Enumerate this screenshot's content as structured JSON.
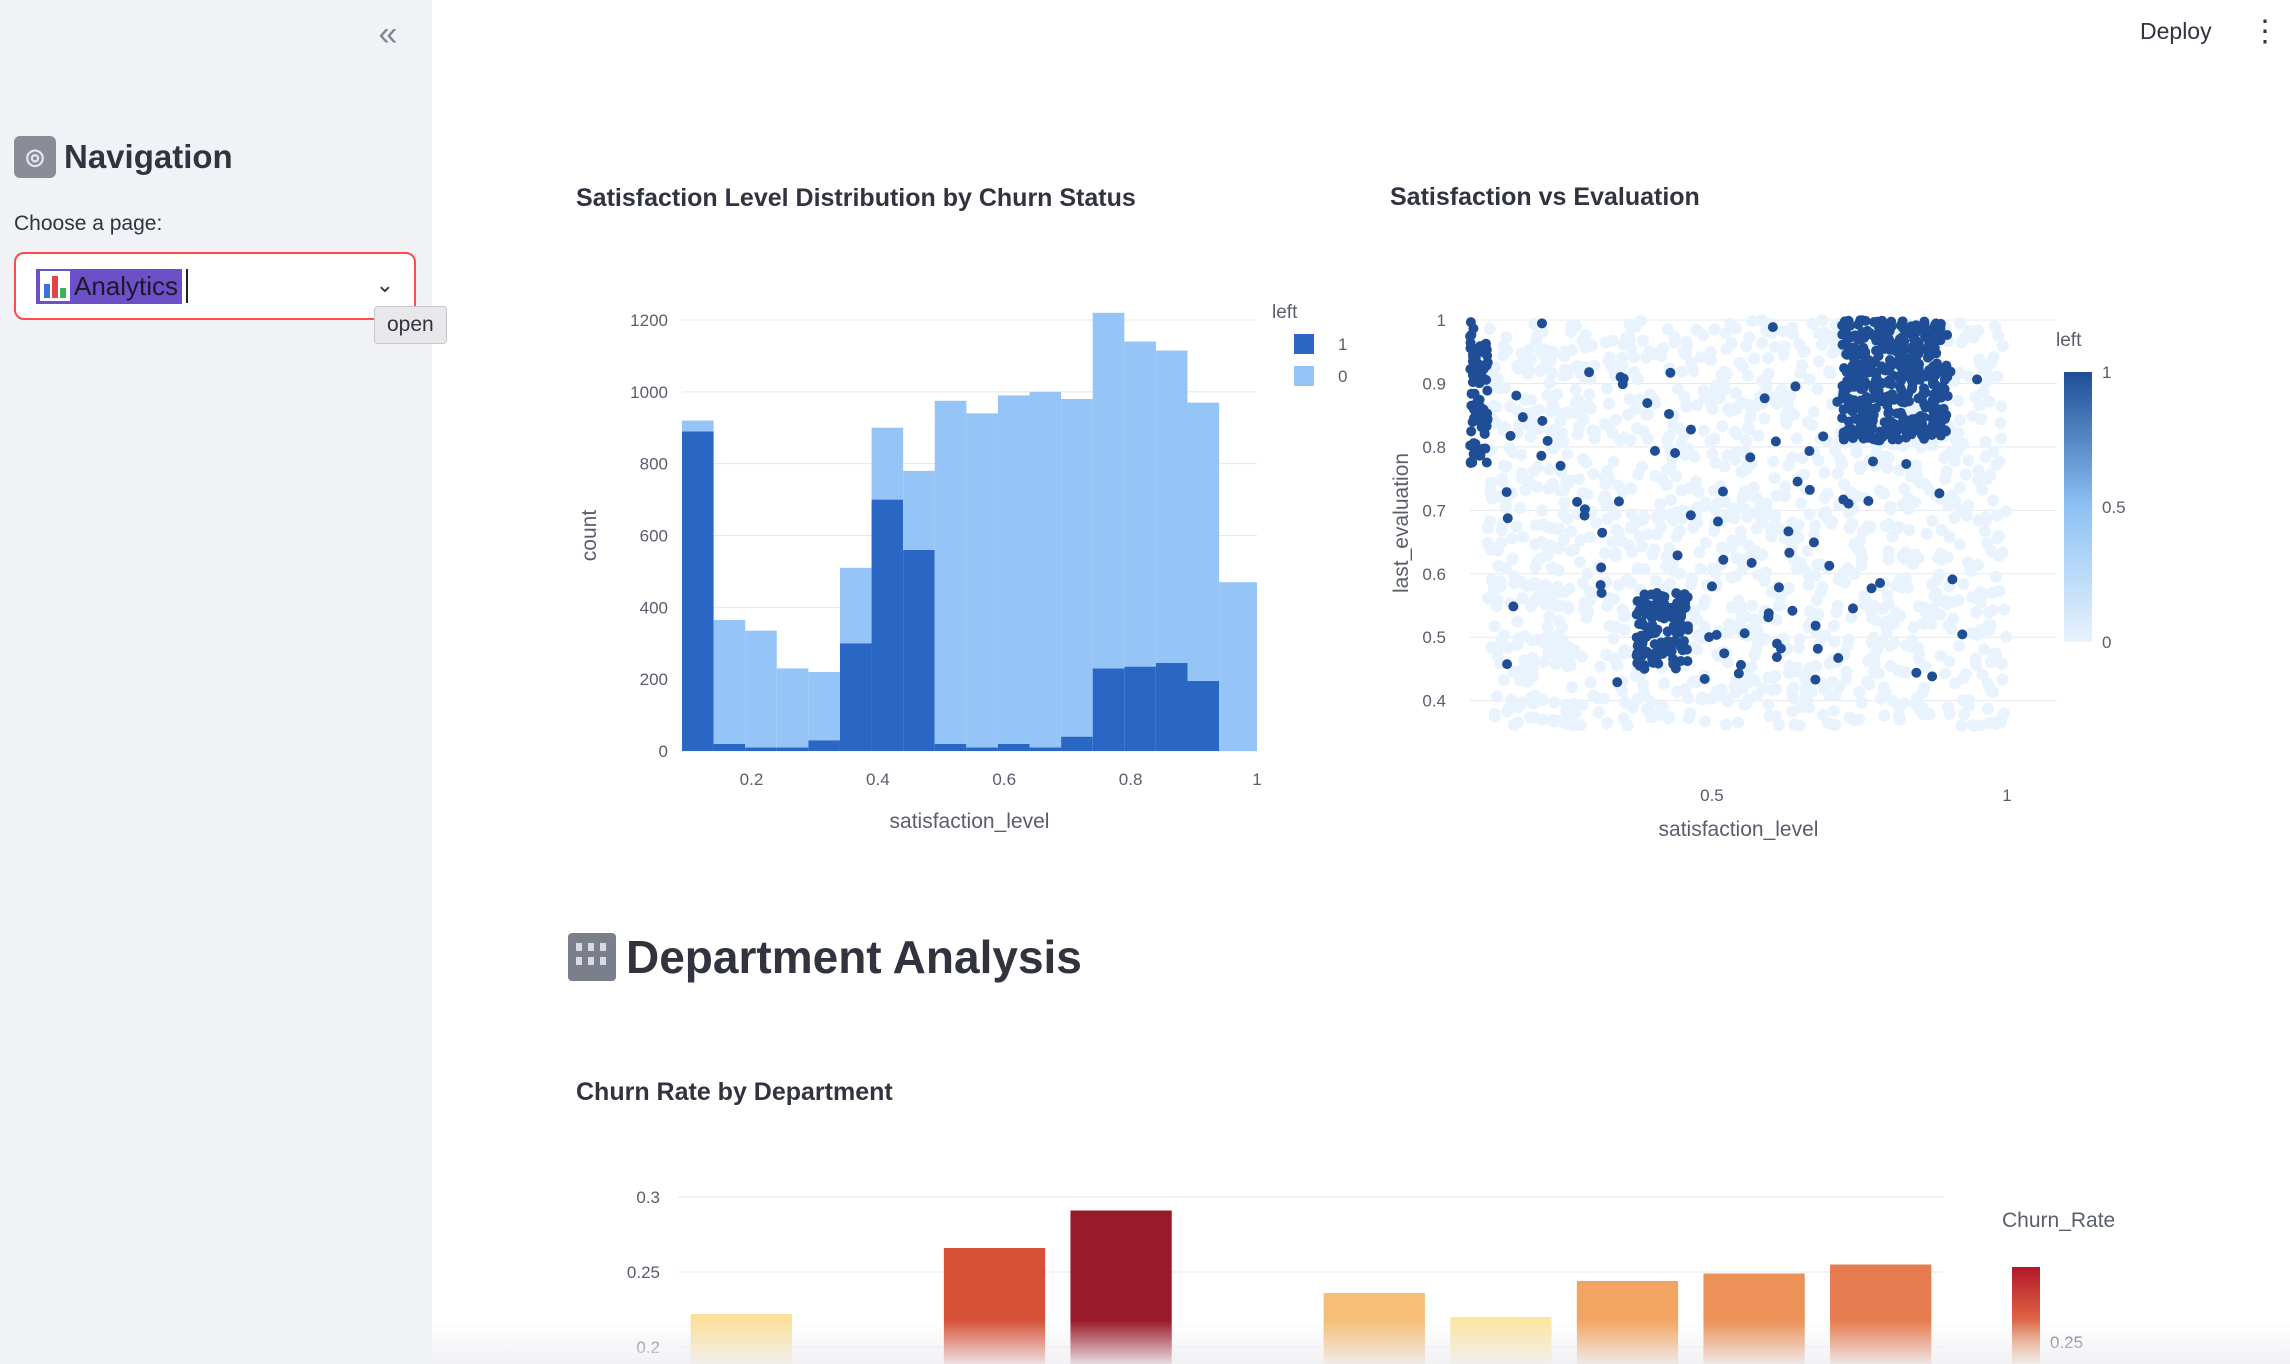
{
  "sidebar": {
    "collapse_icon": "double-chevron-left-icon",
    "title": "Navigation",
    "title_icon": "control-knobs-icon",
    "choose_label": "Choose a page:",
    "selected_page": "Analytics",
    "selected_icon": "bar-chart-icon",
    "tooltip": "open"
  },
  "header": {
    "deploy_label": "Deploy",
    "menu_icon": "vertical-dots-icon"
  },
  "sections": {
    "department_heading": "Department Analysis",
    "department_icon": "office-building-icon"
  },
  "chart_data": [
    {
      "type": "bar",
      "title": "Satisfaction Level Distribution by Churn Status",
      "xlabel": "satisfaction_level",
      "ylabel": "count",
      "legend_title": "left",
      "legend_position": "top-right",
      "barmode": "stack",
      "xlim": [
        0.09,
        1.0
      ],
      "ylim": [
        0,
        1200
      ],
      "xticks": [
        "0.2",
        "0.4",
        "0.6",
        "0.8",
        "1"
      ],
      "yticks": [
        "0",
        "200",
        "400",
        "600",
        "800",
        "1000",
        "1200"
      ],
      "bin_edges": [
        0.09,
        0.14,
        0.19,
        0.24,
        0.29,
        0.34,
        0.39,
        0.44,
        0.49,
        0.54,
        0.59,
        0.64,
        0.69,
        0.74,
        0.79,
        0.84,
        0.89,
        0.94,
        1.0
      ],
      "series": [
        {
          "name": "1",
          "color": "#2a67c4",
          "values": [
            890,
            20,
            10,
            10,
            30,
            300,
            700,
            560,
            20,
            10,
            20,
            10,
            40,
            230,
            235,
            245,
            195,
            0
          ]
        },
        {
          "name": "0",
          "color": "#95c4f7",
          "values": [
            30,
            345,
            325,
            220,
            190,
            210,
            200,
            220,
            955,
            930,
            970,
            990,
            940,
            990,
            905,
            870,
            775,
            470
          ]
        }
      ]
    },
    {
      "type": "scatter",
      "title": "Satisfaction vs Evaluation",
      "xlabel": "satisfaction_level",
      "ylabel": "last_evaluation",
      "xlim": [
        0.09,
        1.0
      ],
      "ylim": [
        0.36,
        1.0
      ],
      "xticks": [
        "0.5",
        "1"
      ],
      "yticks": [
        "0.4",
        "0.5",
        "0.6",
        "0.7",
        "0.8",
        "0.9",
        "1"
      ],
      "colorbar": {
        "title": "left",
        "ticks": [
          "0",
          "0.5",
          "1"
        ],
        "colors": [
          "#e8f3fd",
          "#8ec1f3",
          "#1f4e96"
        ]
      },
      "clusters_left1": [
        {
          "x": [
            0.09,
            0.12
          ],
          "y": [
            0.77,
            1.0
          ]
        },
        {
          "x": [
            0.37,
            0.46
          ],
          "y": [
            0.45,
            0.57
          ]
        },
        {
          "x": [
            0.72,
            0.9
          ],
          "y": [
            0.81,
            1.0
          ]
        }
      ]
    },
    {
      "type": "bar",
      "title": "Churn Rate by Department",
      "legend_title": "Churn_Rate",
      "ylim": [
        0.19,
        0.3
      ],
      "yticks": [
        "0.2",
        "0.25",
        "0.3"
      ],
      "colorbar_ticks": [
        "0.25"
      ],
      "values": [
        0.222,
        null,
        0.266,
        0.291,
        null,
        0.236,
        0.22,
        0.244,
        0.249,
        0.255
      ]
    }
  ]
}
